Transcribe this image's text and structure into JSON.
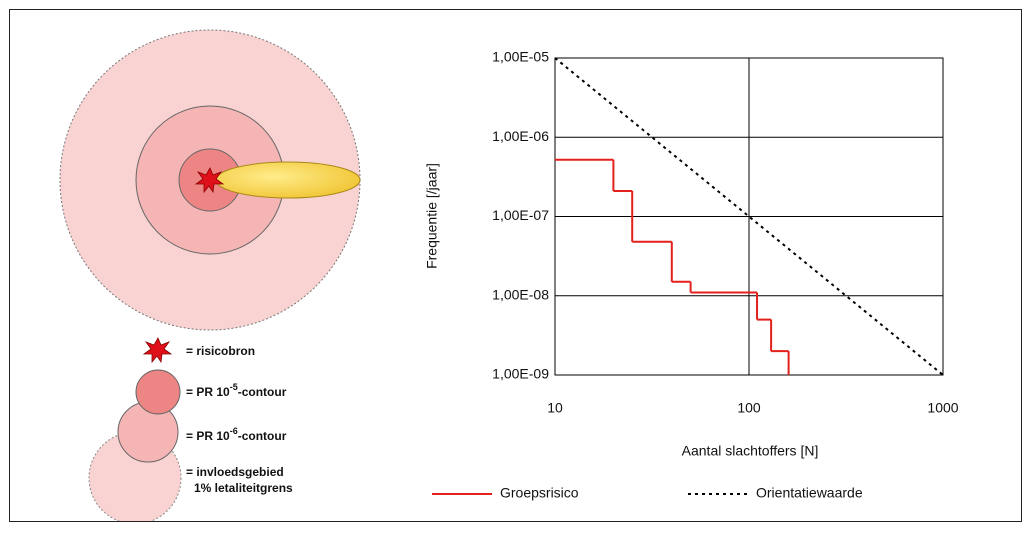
{
  "chart_data": {
    "type": "step-line",
    "xlabel": "Aantal slachtoffers [N]",
    "ylabel": "Frequentie [/jaar]",
    "xscale": "log",
    "yscale": "log",
    "grid": true,
    "legend": "bottom",
    "xlim": [
      10,
      1000
    ],
    "xticks": [
      10,
      100,
      1000
    ],
    "ylim": [
      1e-09,
      1e-05
    ],
    "yticks": [
      {
        "value": 1e-09,
        "label": "1,00E-09"
      },
      {
        "value": 1e-08,
        "label": "1,00E-08"
      },
      {
        "value": 1e-07,
        "label": "1,00E-07"
      },
      {
        "value": 1e-06,
        "label": "1,00E-06"
      },
      {
        "value": 1e-05,
        "label": "1,00E-05"
      }
    ],
    "series": [
      {
        "name": "Groepsrisico",
        "color": "#e3201b",
        "style": "step",
        "x": [
          10,
          20,
          25,
          40,
          50,
          110,
          130,
          160
        ],
        "values": [
          5.2e-07,
          2.1e-07,
          4.8e-08,
          1.5e-08,
          1.1e-08,
          5e-09,
          2e-09,
          1e-09
        ]
      },
      {
        "name": "Orientatiewaarde",
        "color": "#000000",
        "style": "dotted",
        "x": [
          10,
          1000
        ],
        "values": [
          1e-05,
          1e-09
        ]
      }
    ]
  },
  "diagram": {
    "legend": [
      {
        "text": "= risicobron"
      },
      {
        "text": "= PR 10",
        "sup": "-5",
        "suffix": "-contour"
      },
      {
        "text": "= PR 10",
        "sup": "-6",
        "suffix": "-contour"
      },
      {
        "text": "= invloedsgebied",
        "line2": "1% letaliteitgrens"
      }
    ]
  }
}
